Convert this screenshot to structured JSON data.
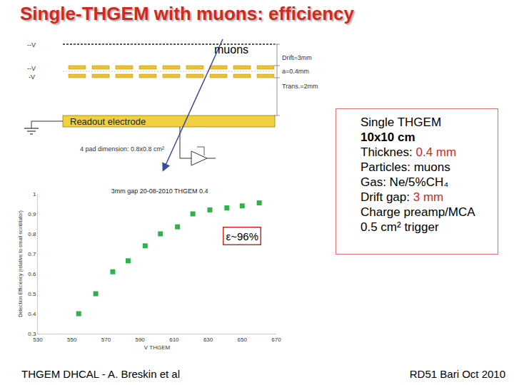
{
  "slide": {
    "title": "Single-THGEM with muons: efficiency",
    "footer_left": "THGEM DHCAL - A. Breskin et al",
    "footer_right": "RD51 Bari Oct 2010"
  },
  "diagram": {
    "particle_label": "muons",
    "electrode_labels": [
      "--V",
      "--V",
      "-V"
    ],
    "gap_labels": [
      "Drift=3mm",
      "a=0.4mm",
      "Trans.=2mm"
    ],
    "readout_label": "Readout electrode",
    "pad_label": "4 pad dimension: 0.8x0.8 cm²"
  },
  "info_box": [
    {
      "text": "Single THGEM"
    },
    {
      "text": "10x10 cm"
    },
    {
      "text": "Thicknes: ",
      "highlight": "0.4 mm"
    },
    {
      "text": "Particles: muons"
    },
    {
      "text": "Gas: Ne/5%CH₄"
    },
    {
      "text": "Drift gap: ",
      "highlight": "3 mm"
    },
    {
      "text": "Charge preamp/MCA"
    },
    {
      "text": "0.5 cm² trigger"
    }
  ],
  "chart_data": {
    "type": "scatter",
    "title": "3mm gap 20-08-2010 THGEM 0.4",
    "x_label": "V THGEM",
    "y_label": "Detection Efficiency (relative to small scintillator)",
    "x": [
      554,
      564,
      574,
      583,
      593,
      602,
      612,
      621,
      631,
      641,
      650,
      660
    ],
    "values": [
      0.4,
      0.5,
      0.61,
      0.665,
      0.74,
      0.8,
      0.835,
      0.9,
      0.92,
      0.93,
      0.94,
      0.955
    ],
    "color": "#2db34a",
    "marker": "square",
    "xlim": [
      530,
      670
    ],
    "xticks": [
      530,
      550,
      570,
      590,
      610,
      630,
      650,
      670
    ],
    "ylim": [
      0.3,
      1
    ],
    "yticks": [
      0.3,
      0.4,
      0.5,
      0.6,
      0.7,
      0.8,
      0.9,
      1
    ],
    "grid": false,
    "annotations": [
      {
        "text": "ε~96%",
        "x": 650,
        "y": 0.79
      }
    ]
  }
}
